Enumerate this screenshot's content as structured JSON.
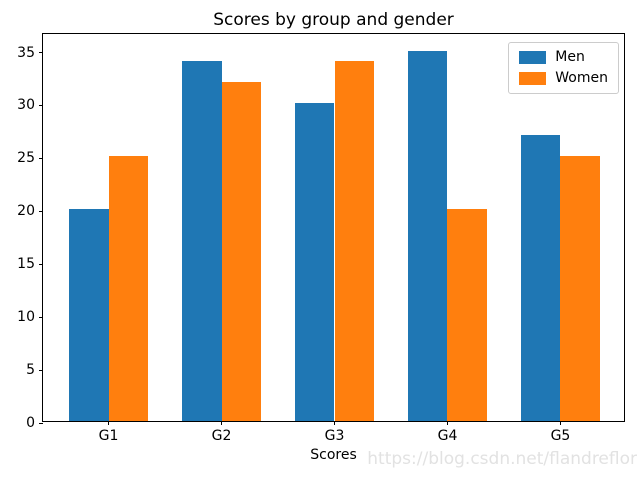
{
  "figure": {
    "background": "#ffffff",
    "watermark": "https://blog.csdn.net/flandreflor"
  },
  "chart_data": {
    "type": "bar",
    "title": "Scores by group and gender",
    "xlabel": "Scores",
    "ylabel": "",
    "categories": [
      "G1",
      "G2",
      "G3",
      "G4",
      "G5"
    ],
    "series": [
      {
        "name": "Men",
        "color": "#1f77b4",
        "values": [
          20,
          34,
          30,
          35,
          27
        ]
      },
      {
        "name": "Women",
        "color": "#ff7f0e",
        "values": [
          25,
          32,
          34,
          20,
          25
        ]
      }
    ],
    "yticks": [
      0,
      5,
      10,
      15,
      20,
      25,
      30,
      35
    ],
    "ylim": [
      0,
      36.75
    ],
    "bar_width": 0.35,
    "grid": false,
    "legend_position": "upper right",
    "legend_entries": [
      "Men",
      "Women"
    ],
    "axis_color": "#000000",
    "tick_label_color": "#000000"
  }
}
